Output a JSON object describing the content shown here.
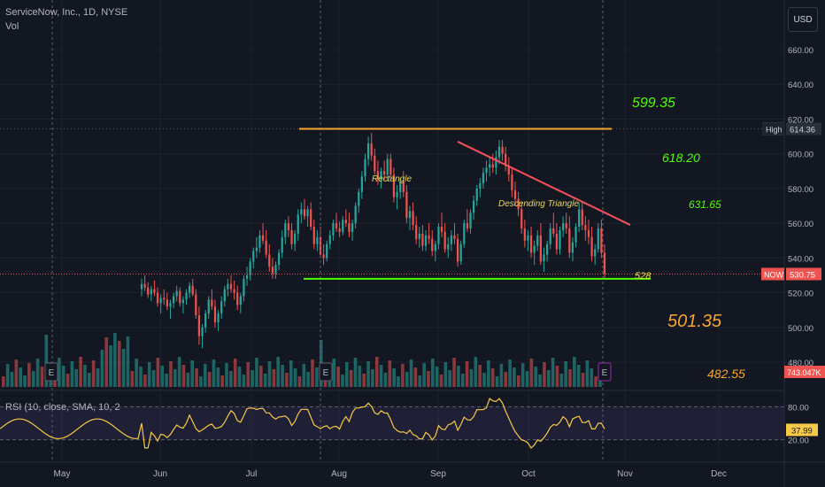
{
  "header": {
    "symbol": "ServiceNow, Inc., 1D, NYSE",
    "vol_label": "Vol",
    "currency": "USD"
  },
  "price_scale": {
    "ticks": [
      "660.00",
      "640.00",
      "620.00",
      "600.00",
      "580.00",
      "560.00",
      "540.00",
      "520.00",
      "500.00",
      "480.00"
    ],
    "high_tag": "High",
    "high_value": "614.36",
    "now_tag": "NOW",
    "now_value": "530.75",
    "vol_value": "743.047K"
  },
  "rsi": {
    "label": "RSI (10, close, SMA, 10, 2",
    "ticks": [
      "80.00",
      "20.00"
    ],
    "value": "37.99"
  },
  "time_axis": {
    "labels": [
      "May",
      "Jun",
      "Jul",
      "Aug",
      "Sep",
      "Oct",
      "Nov",
      "Dec"
    ]
  },
  "annotations": {
    "rectangle": "Rectangle",
    "descending_triangle": "Descending Triangle",
    "target1": "599.35",
    "target2": "618.20",
    "target3": "631.65",
    "support": "528",
    "target4": "501.35",
    "target5": "482.55",
    "earnings": "E"
  },
  "colors": {
    "bg": "#131722",
    "up": "#26a69a",
    "down": "#ef5350",
    "resistance": "#f7a530",
    "support": "#4cff00",
    "trendline": "#f0525c",
    "rsi_line": "#f7c948",
    "rsi_band": "#7e57c2"
  },
  "chart_data": {
    "type": "candlestick",
    "title": "ServiceNow, Inc., 1D, NYSE",
    "ylim": [
      475,
      675
    ],
    "bars_ohlc": [
      [
        522,
        528,
        518,
        525
      ],
      [
        525,
        530,
        521,
        523
      ],
      [
        523,
        526,
        517,
        519
      ],
      [
        519,
        524,
        515,
        522
      ],
      [
        522,
        527,
        518,
        520
      ],
      [
        520,
        523,
        512,
        514
      ],
      [
        514,
        519,
        508,
        517
      ],
      [
        517,
        522,
        513,
        516
      ],
      [
        516,
        520,
        510,
        512
      ],
      [
        512,
        516,
        505,
        514
      ],
      [
        514,
        520,
        511,
        518
      ],
      [
        518,
        524,
        515,
        521
      ],
      [
        521,
        523,
        512,
        514
      ],
      [
        514,
        518,
        508,
        516
      ],
      [
        516,
        522,
        513,
        520
      ],
      [
        520,
        526,
        517,
        524
      ],
      [
        524,
        528,
        518,
        519
      ],
      [
        519,
        522,
        505,
        507
      ],
      [
        507,
        512,
        490,
        495
      ],
      [
        495,
        502,
        488,
        500
      ],
      [
        500,
        510,
        497,
        508
      ],
      [
        508,
        518,
        505,
        516
      ],
      [
        516,
        522,
        510,
        512
      ],
      [
        512,
        516,
        500,
        503
      ],
      [
        503,
        510,
        498,
        508
      ],
      [
        508,
        518,
        505,
        515
      ],
      [
        515,
        524,
        512,
        522
      ],
      [
        522,
        528,
        518,
        525
      ],
      [
        525,
        530,
        520,
        522
      ],
      [
        522,
        527,
        516,
        520
      ],
      [
        520,
        524,
        510,
        513
      ],
      [
        513,
        520,
        508,
        518
      ],
      [
        518,
        530,
        515,
        528
      ],
      [
        528,
        535,
        524,
        530
      ],
      [
        530,
        540,
        527,
        538
      ],
      [
        538,
        546,
        534,
        544
      ],
      [
        544,
        552,
        540,
        546
      ],
      [
        546,
        556,
        543,
        553
      ],
      [
        553,
        560,
        548,
        550
      ],
      [
        550,
        556,
        540,
        542
      ],
      [
        542,
        548,
        532,
        535
      ],
      [
        535,
        540,
        528,
        531
      ],
      [
        531,
        538,
        528,
        536
      ],
      [
        536,
        545,
        533,
        543
      ],
      [
        543,
        556,
        540,
        552
      ],
      [
        552,
        562,
        548,
        560
      ],
      [
        560,
        564,
        552,
        556
      ],
      [
        556,
        560,
        545,
        548
      ],
      [
        548,
        556,
        544,
        554
      ],
      [
        554,
        568,
        550,
        565
      ],
      [
        565,
        572,
        560,
        568
      ],
      [
        568,
        574,
        562,
        564
      ],
      [
        564,
        570,
        558,
        568
      ],
      [
        568,
        572,
        556,
        558
      ],
      [
        558,
        562,
        545,
        548
      ],
      [
        548,
        556,
        544,
        552
      ],
      [
        552,
        558,
        540,
        542
      ],
      [
        542,
        548,
        536,
        540
      ],
      [
        540,
        550,
        538,
        548
      ],
      [
        548,
        556,
        545,
        553
      ],
      [
        553,
        562,
        550,
        560
      ],
      [
        560,
        566,
        555,
        557
      ],
      [
        557,
        561,
        552,
        555
      ],
      [
        555,
        564,
        553,
        562
      ],
      [
        562,
        568,
        558,
        560
      ],
      [
        560,
        566,
        552,
        555
      ],
      [
        555,
        562,
        550,
        560
      ],
      [
        560,
        572,
        557,
        570
      ],
      [
        570,
        580,
        566,
        578
      ],
      [
        578,
        590,
        574,
        587
      ],
      [
        587,
        600,
        584,
        597
      ],
      [
        597,
        610,
        593,
        606
      ],
      [
        606,
        612,
        596,
        599
      ],
      [
        599,
        603,
        588,
        590
      ],
      [
        590,
        596,
        582,
        585
      ],
      [
        585,
        592,
        580,
        590
      ],
      [
        590,
        596,
        585,
        588
      ],
      [
        588,
        600,
        584,
        597
      ],
      [
        597,
        600,
        585,
        588
      ],
      [
        588,
        592,
        572,
        575
      ],
      [
        575,
        582,
        568,
        578
      ],
      [
        578,
        586,
        574,
        584
      ],
      [
        584,
        590,
        575,
        578
      ],
      [
        578,
        582,
        560,
        563
      ],
      [
        563,
        570,
        556,
        567
      ],
      [
        567,
        572,
        556,
        559
      ],
      [
        559,
        564,
        548,
        551
      ],
      [
        551,
        558,
        546,
        554
      ],
      [
        554,
        559,
        544,
        547
      ],
      [
        547,
        556,
        544,
        553
      ],
      [
        553,
        560,
        548,
        551
      ],
      [
        551,
        556,
        541,
        544
      ],
      [
        544,
        550,
        538,
        548
      ],
      [
        548,
        560,
        545,
        558
      ],
      [
        558,
        566,
        552,
        555
      ],
      [
        555,
        560,
        543,
        545
      ],
      [
        545,
        552,
        540,
        548
      ],
      [
        548,
        556,
        544,
        553
      ],
      [
        553,
        560,
        548,
        551
      ],
      [
        551,
        554,
        535,
        538
      ],
      [
        538,
        550,
        536,
        548
      ],
      [
        548,
        562,
        546,
        560
      ],
      [
        560,
        568,
        555,
        557
      ],
      [
        557,
        568,
        554,
        566
      ],
      [
        566,
        576,
        562,
        573
      ],
      [
        573,
        582,
        570,
        580
      ],
      [
        580,
        586,
        575,
        583
      ],
      [
        583,
        592,
        580,
        589
      ],
      [
        589,
        596,
        584,
        592
      ],
      [
        592,
        598,
        587,
        594
      ],
      [
        594,
        600,
        589,
        592
      ],
      [
        592,
        602,
        588,
        598
      ],
      [
        598,
        608,
        594,
        604
      ],
      [
        604,
        608,
        596,
        600
      ],
      [
        600,
        604,
        590,
        593
      ],
      [
        593,
        598,
        584,
        588
      ],
      [
        588,
        592,
        575,
        579
      ],
      [
        579,
        584,
        570,
        574
      ],
      [
        574,
        578,
        564,
        568
      ],
      [
        568,
        572,
        554,
        557
      ],
      [
        557,
        562,
        546,
        550
      ],
      [
        550,
        556,
        544,
        553
      ],
      [
        553,
        558,
        540,
        543
      ],
      [
        543,
        550,
        536,
        547
      ],
      [
        547,
        556,
        544,
        553
      ],
      [
        553,
        560,
        536,
        538
      ],
      [
        538,
        546,
        532,
        542
      ],
      [
        542,
        550,
        538,
        548
      ],
      [
        548,
        560,
        545,
        557
      ],
      [
        557,
        566,
        552,
        554
      ],
      [
        554,
        560,
        542,
        545
      ],
      [
        545,
        558,
        542,
        556
      ],
      [
        556,
        564,
        552,
        560
      ],
      [
        560,
        566,
        554,
        557
      ],
      [
        557,
        564,
        540,
        543
      ],
      [
        543,
        552,
        538,
        549
      ],
      [
        549,
        560,
        546,
        558
      ],
      [
        558,
        572,
        555,
        568
      ],
      [
        568,
        572,
        556,
        559
      ],
      [
        559,
        564,
        550,
        556
      ],
      [
        556,
        562,
        548,
        552
      ],
      [
        552,
        558,
        538,
        541
      ],
      [
        541,
        548,
        536,
        545
      ],
      [
        545,
        560,
        543,
        557
      ],
      [
        557,
        562,
        540,
        543
      ],
      [
        543,
        548,
        528,
        531
      ]
    ],
    "overlays": {
      "resistance_level": 614.36,
      "support_level": 528,
      "descending_trendline": [
        [
          607,
          559
        ]
      ],
      "targets": [
        599.35,
        618.2,
        631.65,
        501.35,
        482.55
      ]
    },
    "rsi_range": [
      0,
      100
    ],
    "rsi_bands": [
      20,
      80
    ],
    "rsi_last": 37.99
  }
}
